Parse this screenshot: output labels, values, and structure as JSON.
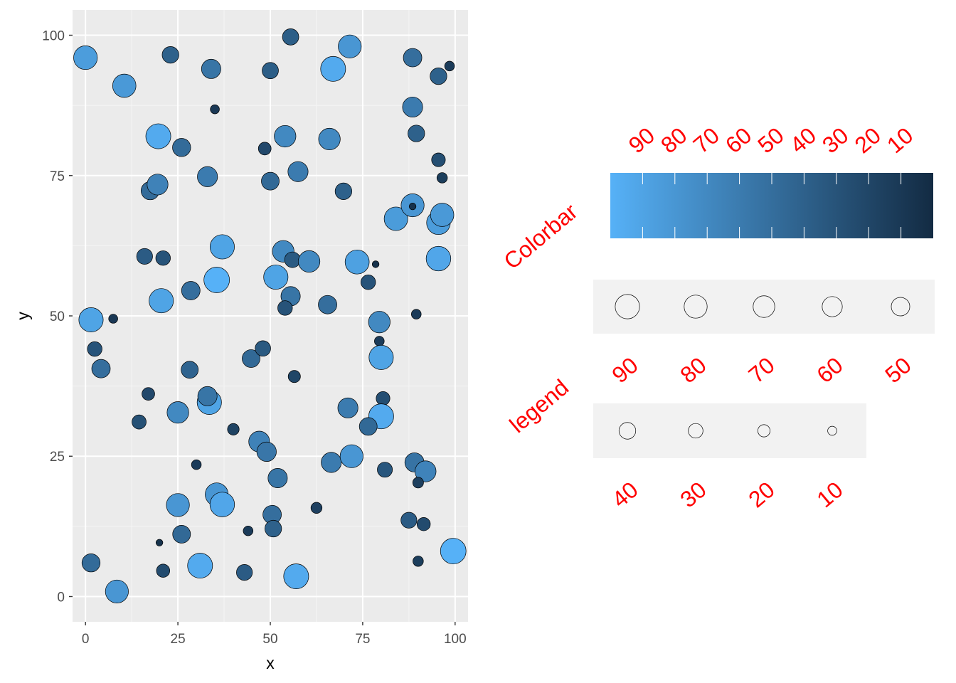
{
  "colors": {
    "panel_bg": "#ebebeb",
    "grid_major": "#ffffff",
    "grid_minor": "#f5f5f5",
    "low_color": "#132b43",
    "high_color": "#56b1f7",
    "legend_text": "#ff0000",
    "legend_key_bg": "#f2f2f2"
  },
  "chart_data": {
    "type": "scatter",
    "xlabel": "x",
    "ylabel": "y",
    "xlim": [
      -3.5,
      103.5
    ],
    "ylim": [
      -4.5,
      104.5
    ],
    "x_ticks": [
      0,
      25,
      50,
      75,
      100
    ],
    "y_ticks": [
      0,
      25,
      50,
      75,
      100
    ],
    "grid": true,
    "size_and_fill_variable": "z",
    "points": [
      {
        "x": 0,
        "y": 96,
        "z": 85
      },
      {
        "x": 10.5,
        "y": 91,
        "z": 82
      },
      {
        "x": 23,
        "y": 96.5,
        "z": 40
      },
      {
        "x": 34,
        "y": 94,
        "z": 55
      },
      {
        "x": 35,
        "y": 86.8,
        "z": 10
      },
      {
        "x": 50,
        "y": 93.7,
        "z": 38
      },
      {
        "x": 55.5,
        "y": 99.7,
        "z": 38
      },
      {
        "x": 67,
        "y": 94,
        "z": 95
      },
      {
        "x": 71.5,
        "y": 98,
        "z": 80
      },
      {
        "x": 88.5,
        "y": 96,
        "z": 50
      },
      {
        "x": 95.5,
        "y": 92.7,
        "z": 40
      },
      {
        "x": 98.5,
        "y": 94.5,
        "z": 12
      },
      {
        "x": 19.7,
        "y": 82,
        "z": 95
      },
      {
        "x": 26,
        "y": 80,
        "z": 48
      },
      {
        "x": 48.5,
        "y": 79.8,
        "z": 22
      },
      {
        "x": 54,
        "y": 82,
        "z": 70
      },
      {
        "x": 66,
        "y": 81.5,
        "z": 70
      },
      {
        "x": 88.5,
        "y": 87.2,
        "z": 60
      },
      {
        "x": 89.5,
        "y": 82.5,
        "z": 40
      },
      {
        "x": 95.5,
        "y": 77.8,
        "z": 26
      },
      {
        "x": 96.5,
        "y": 74.6,
        "z": 14
      },
      {
        "x": 17.5,
        "y": 72.3,
        "z": 48
      },
      {
        "x": 19.5,
        "y": 73.4,
        "z": 65
      },
      {
        "x": 33,
        "y": 74.8,
        "z": 60
      },
      {
        "x": 50,
        "y": 74,
        "z": 46
      },
      {
        "x": 57.5,
        "y": 75.7,
        "z": 60
      },
      {
        "x": 69.8,
        "y": 72.2,
        "z": 40
      },
      {
        "x": 84,
        "y": 67.3,
        "z": 84
      },
      {
        "x": 88.5,
        "y": 69.7,
        "z": 80
      },
      {
        "x": 88.5,
        "y": 69.5,
        "z": 5
      },
      {
        "x": 95.5,
        "y": 66.6,
        "z": 85
      },
      {
        "x": 96.5,
        "y": 68,
        "z": 82
      },
      {
        "x": 16,
        "y": 60.6,
        "z": 36
      },
      {
        "x": 21,
        "y": 60.3,
        "z": 30
      },
      {
        "x": 37,
        "y": 62.3,
        "z": 90
      },
      {
        "x": 53.5,
        "y": 61.5,
        "z": 70
      },
      {
        "x": 56,
        "y": 60,
        "z": 35
      },
      {
        "x": 60.5,
        "y": 59.7,
        "z": 70
      },
      {
        "x": 73.5,
        "y": 59.6,
        "z": 88
      },
      {
        "x": 78.5,
        "y": 59.2,
        "z": 5
      },
      {
        "x": 95.5,
        "y": 60.2,
        "z": 92
      },
      {
        "x": 20.5,
        "y": 52.7,
        "z": 90
      },
      {
        "x": 28.5,
        "y": 54.5,
        "z": 50
      },
      {
        "x": 35.5,
        "y": 56.4,
        "z": 100
      },
      {
        "x": 51.5,
        "y": 56.9,
        "z": 90
      },
      {
        "x": 55.5,
        "y": 53.5,
        "z": 55
      },
      {
        "x": 54,
        "y": 51.4,
        "z": 30
      },
      {
        "x": 65.5,
        "y": 52,
        "z": 50
      },
      {
        "x": 76.5,
        "y": 56,
        "z": 30
      },
      {
        "x": 1.5,
        "y": 49.3,
        "z": 90
      },
      {
        "x": 7.5,
        "y": 49.5,
        "z": 10
      },
      {
        "x": 79.5,
        "y": 48.9,
        "z": 70
      },
      {
        "x": 89.5,
        "y": 50.3,
        "z": 12
      },
      {
        "x": 2.5,
        "y": 44.1,
        "z": 30
      },
      {
        "x": 4.2,
        "y": 40.6,
        "z": 50
      },
      {
        "x": 28.2,
        "y": 40.4,
        "z": 42
      },
      {
        "x": 44.8,
        "y": 42.4,
        "z": 46
      },
      {
        "x": 48,
        "y": 44.2,
        "z": 34
      },
      {
        "x": 56.5,
        "y": 39.2,
        "z": 20
      },
      {
        "x": 79.5,
        "y": 45.5,
        "z": 12
      },
      {
        "x": 80,
        "y": 42.6,
        "z": 90
      },
      {
        "x": 17,
        "y": 36.1,
        "z": 22
      },
      {
        "x": 25,
        "y": 32.8,
        "z": 70
      },
      {
        "x": 33.5,
        "y": 34.6,
        "z": 90
      },
      {
        "x": 33,
        "y": 35.7,
        "z": 55
      },
      {
        "x": 71,
        "y": 33.6,
        "z": 60
      },
      {
        "x": 80.5,
        "y": 35.3,
        "z": 26
      },
      {
        "x": 80,
        "y": 32.1,
        "z": 95
      },
      {
        "x": 76.5,
        "y": 30.3,
        "z": 46
      },
      {
        "x": 14.5,
        "y": 31.1,
        "z": 28
      },
      {
        "x": 40,
        "y": 29.8,
        "z": 18
      },
      {
        "x": 47,
        "y": 27.6,
        "z": 65
      },
      {
        "x": 49,
        "y": 25.8,
        "z": 56
      },
      {
        "x": 66.5,
        "y": 23.9,
        "z": 60
      },
      {
        "x": 72,
        "y": 25,
        "z": 80
      },
      {
        "x": 89,
        "y": 23.9,
        "z": 54
      },
      {
        "x": 92,
        "y": 22.3,
        "z": 66
      },
      {
        "x": 30,
        "y": 23.5,
        "z": 12
      },
      {
        "x": 52,
        "y": 21.1,
        "z": 55
      },
      {
        "x": 81,
        "y": 22.6,
        "z": 32
      },
      {
        "x": 90,
        "y": 20.3,
        "z": 15
      },
      {
        "x": 25,
        "y": 16.3,
        "z": 80
      },
      {
        "x": 35.5,
        "y": 18.2,
        "z": 80
      },
      {
        "x": 37,
        "y": 16.4,
        "z": 92
      },
      {
        "x": 50.5,
        "y": 14.6,
        "z": 50
      },
      {
        "x": 62.5,
        "y": 15.8,
        "z": 16
      },
      {
        "x": 26,
        "y": 11.1,
        "z": 46
      },
      {
        "x": 44,
        "y": 11.7,
        "z": 12
      },
      {
        "x": 50.8,
        "y": 12.1,
        "z": 40
      },
      {
        "x": 87.5,
        "y": 13.6,
        "z": 36
      },
      {
        "x": 91.5,
        "y": 12.9,
        "z": 24
      },
      {
        "x": 20,
        "y": 9.6,
        "z": 5
      },
      {
        "x": 99.5,
        "y": 8.1,
        "z": 100
      },
      {
        "x": 1.5,
        "y": 6,
        "z": 48
      },
      {
        "x": 21,
        "y": 4.6,
        "z": 24
      },
      {
        "x": 31,
        "y": 5.5,
        "z": 95
      },
      {
        "x": 43,
        "y": 4.3,
        "z": 36
      },
      {
        "x": 57,
        "y": 3.6,
        "z": 95
      },
      {
        "x": 90,
        "y": 6.3,
        "z": 14
      },
      {
        "x": 8.5,
        "y": 0.9,
        "z": 80
      }
    ]
  },
  "colorbar": {
    "title": "Colorbar",
    "labels": [
      "90",
      "80",
      "70",
      "60",
      "50",
      "40",
      "30",
      "20",
      "10"
    ],
    "values": [
      90,
      80,
      70,
      60,
      50,
      40,
      30,
      20,
      10
    ],
    "domain": [
      100,
      0
    ]
  },
  "size_legend": {
    "title": "legend",
    "rows": [
      [
        {
          "label": "90",
          "value": 90
        },
        {
          "label": "80",
          "value": 80
        },
        {
          "label": "70",
          "value": 70
        },
        {
          "label": "60",
          "value": 60
        },
        {
          "label": "50",
          "value": 50
        }
      ],
      [
        {
          "label": "40",
          "value": 40
        },
        {
          "label": "30",
          "value": 30
        },
        {
          "label": "20",
          "value": 20
        },
        {
          "label": "10",
          "value": 10
        }
      ]
    ]
  }
}
